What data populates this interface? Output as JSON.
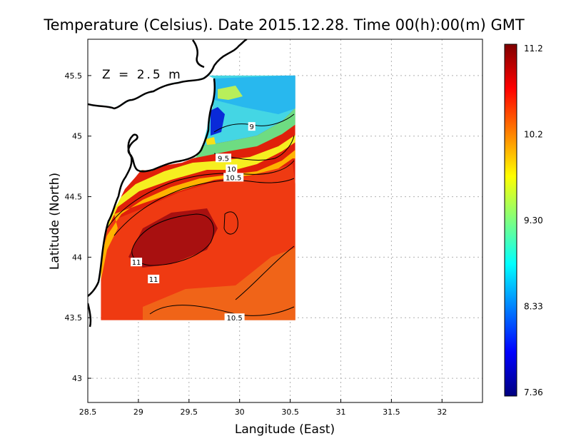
{
  "chart_data": {
    "type": "heatmap",
    "title": "Temperature (Celsius). Date 2015.12.28. Time 00(h):00(m)  GMT",
    "annotation": "Z = 2.5 m",
    "xlabel": "Langitude (East)",
    "ylabel": "Latitude (North)",
    "xlim": [
      28.5,
      32.4
    ],
    "ylim": [
      42.8,
      45.8
    ],
    "x_ticks": [
      "28.5",
      "29",
      "29.5",
      "30",
      "30.5",
      "31",
      "31.5",
      "32"
    ],
    "y_ticks": [
      "43",
      "43.5",
      "44",
      "44.5",
      "45",
      "45.5"
    ],
    "grid": true,
    "colorbar": {
      "min": 7.36,
      "max": 11.2,
      "ticks": [
        "11.2",
        "10.2",
        "9.30",
        "8.33",
        "7.36"
      ],
      "colormap": [
        "#00007f",
        "#0000ff",
        "#007fff",
        "#00ffff",
        "#7fff7f",
        "#ffff00",
        "#ff7f00",
        "#ff0000",
        "#7f0000"
      ]
    },
    "data_extent": {
      "lon": [
        28.63,
        30.55
      ],
      "lat": [
        43.48,
        45.5
      ]
    },
    "contour_labels": [
      {
        "text": "9",
        "lon": 30.12,
        "lat": 45.08
      },
      {
        "text": "9.5",
        "lon": 29.84,
        "lat": 44.82
      },
      {
        "text": "10",
        "lon": 29.92,
        "lat": 44.73
      },
      {
        "text": "10.5",
        "lon": 29.94,
        "lat": 44.66
      },
      {
        "text": "11",
        "lon": 28.98,
        "lat": 43.96
      },
      {
        "text": "11",
        "lon": 29.15,
        "lat": 43.82
      },
      {
        "text": "10.5",
        "lon": 29.95,
        "lat": 43.5
      }
    ]
  },
  "colors": {
    "background": "#ffffff",
    "grid": "#b0b0b0",
    "coast": "#000000"
  }
}
